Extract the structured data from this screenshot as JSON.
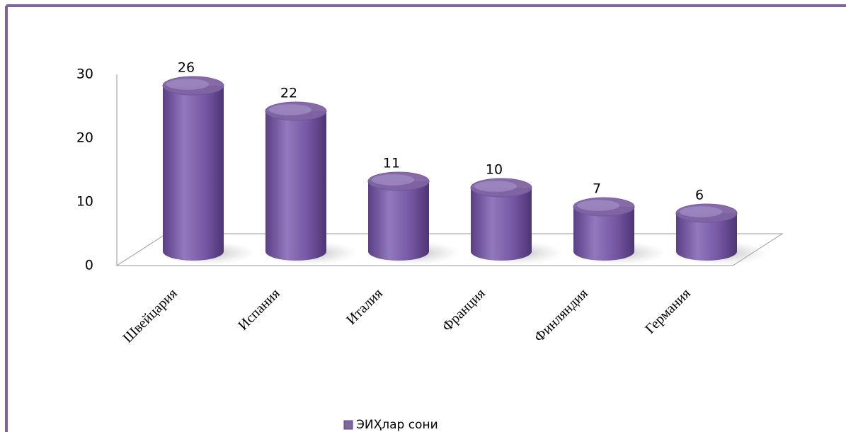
{
  "chart_data": {
    "type": "bar",
    "categories": [
      "Швейцария",
      "Испания",
      "Италия",
      "Франция",
      "Финляндия",
      "Германия"
    ],
    "series": [
      {
        "name": "ЭИҲлар сони",
        "color": "#8064a2",
        "values": [
          26,
          22,
          11,
          10,
          7,
          6
        ]
      }
    ],
    "ylim": [
      0,
      30
    ],
    "yticks": [
      0,
      10,
      20,
      30
    ],
    "legend": "bottom"
  }
}
